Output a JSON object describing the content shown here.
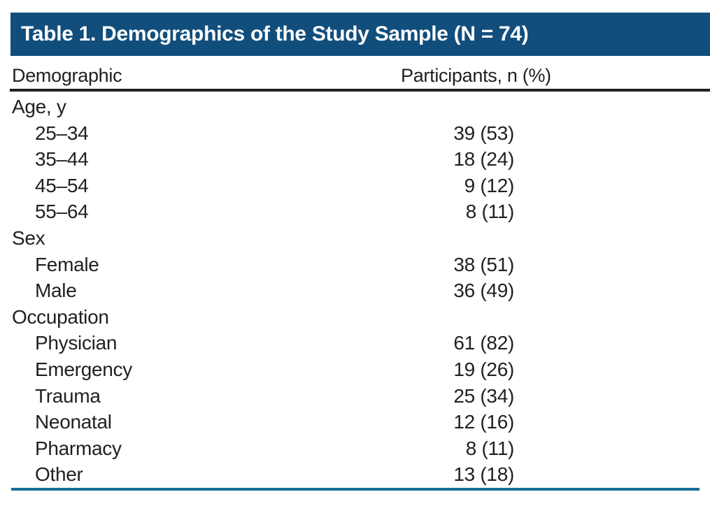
{
  "title_bar": {
    "label": "Table 1. Demographics of the Study Sample (N = 74)"
  },
  "table": {
    "column_headers": [
      "Demographic",
      "Participants, n (%)"
    ],
    "rows": [
      {
        "label": "Age, y",
        "value": ""
      },
      {
        "label": "25–34",
        "value": "39 (53)"
      },
      {
        "label": "35–44",
        "value": "18 (24)"
      },
      {
        "label": "45–54",
        "value": "9 (12)"
      },
      {
        "label": "55–64",
        "value": "8 (11)"
      },
      {
        "label": "Sex",
        "value": ""
      },
      {
        "label": "Female",
        "value": "38 (51)"
      },
      {
        "label": "Male",
        "value": "36 (49)"
      },
      {
        "label": "Occupation",
        "value": ""
      },
      {
        "label": "Physician",
        "value": "61 (82)"
      },
      {
        "label": "Emergency",
        "value": "19 (26)"
      },
      {
        "label": "Trauma",
        "value": "25 (34)"
      },
      {
        "label": "Neonatal",
        "value": "12 (16)"
      },
      {
        "label": "Pharmacy",
        "value": "8 (11)"
      },
      {
        "label": "Other",
        "value": "13 (18)"
      }
    ]
  },
  "colors": {
    "title_bar_background": "#114E7C",
    "title_text": "#FFFFFF",
    "body_text": "#231F20",
    "header_rule": "#231F20",
    "bottom_rule": "#156F96"
  }
}
